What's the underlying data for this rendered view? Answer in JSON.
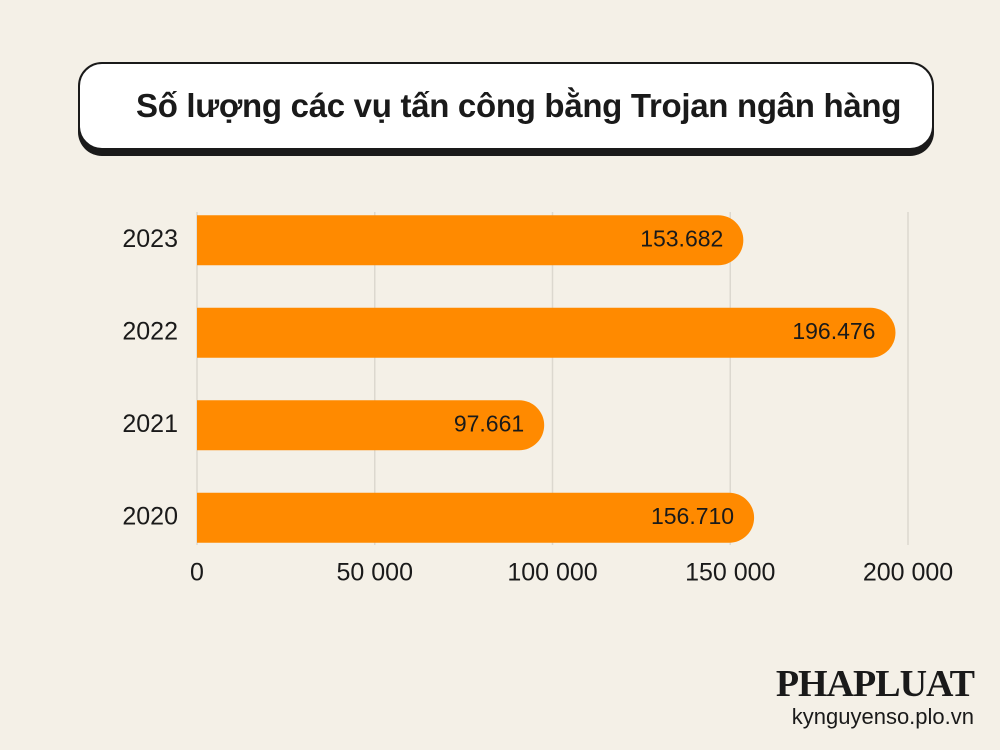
{
  "chart_data": {
    "type": "barh",
    "title": "Số lượng các vụ tấn công bằng Trojan ngân hàng",
    "categories": [
      "2023",
      "2022",
      "2021",
      "2020"
    ],
    "values": [
      153682,
      196476,
      97661,
      156710
    ],
    "value_labels": [
      "153.682",
      "196.476",
      "97.661",
      "156.710"
    ],
    "color": "#ff8a00",
    "xlim": [
      0,
      200000
    ],
    "xticks": [
      0,
      {
        "value": 50000,
        "label": "50 000"
      },
      {
        "value": 100000,
        "label": "100 000"
      },
      {
        "value": 150000,
        "label": "150 000"
      },
      {
        "value": 200000,
        "label": "200 000"
      }
    ],
    "grid": true,
    "brand": "PHAPLUAT",
    "source": "kynguyenso.plo.vn"
  }
}
